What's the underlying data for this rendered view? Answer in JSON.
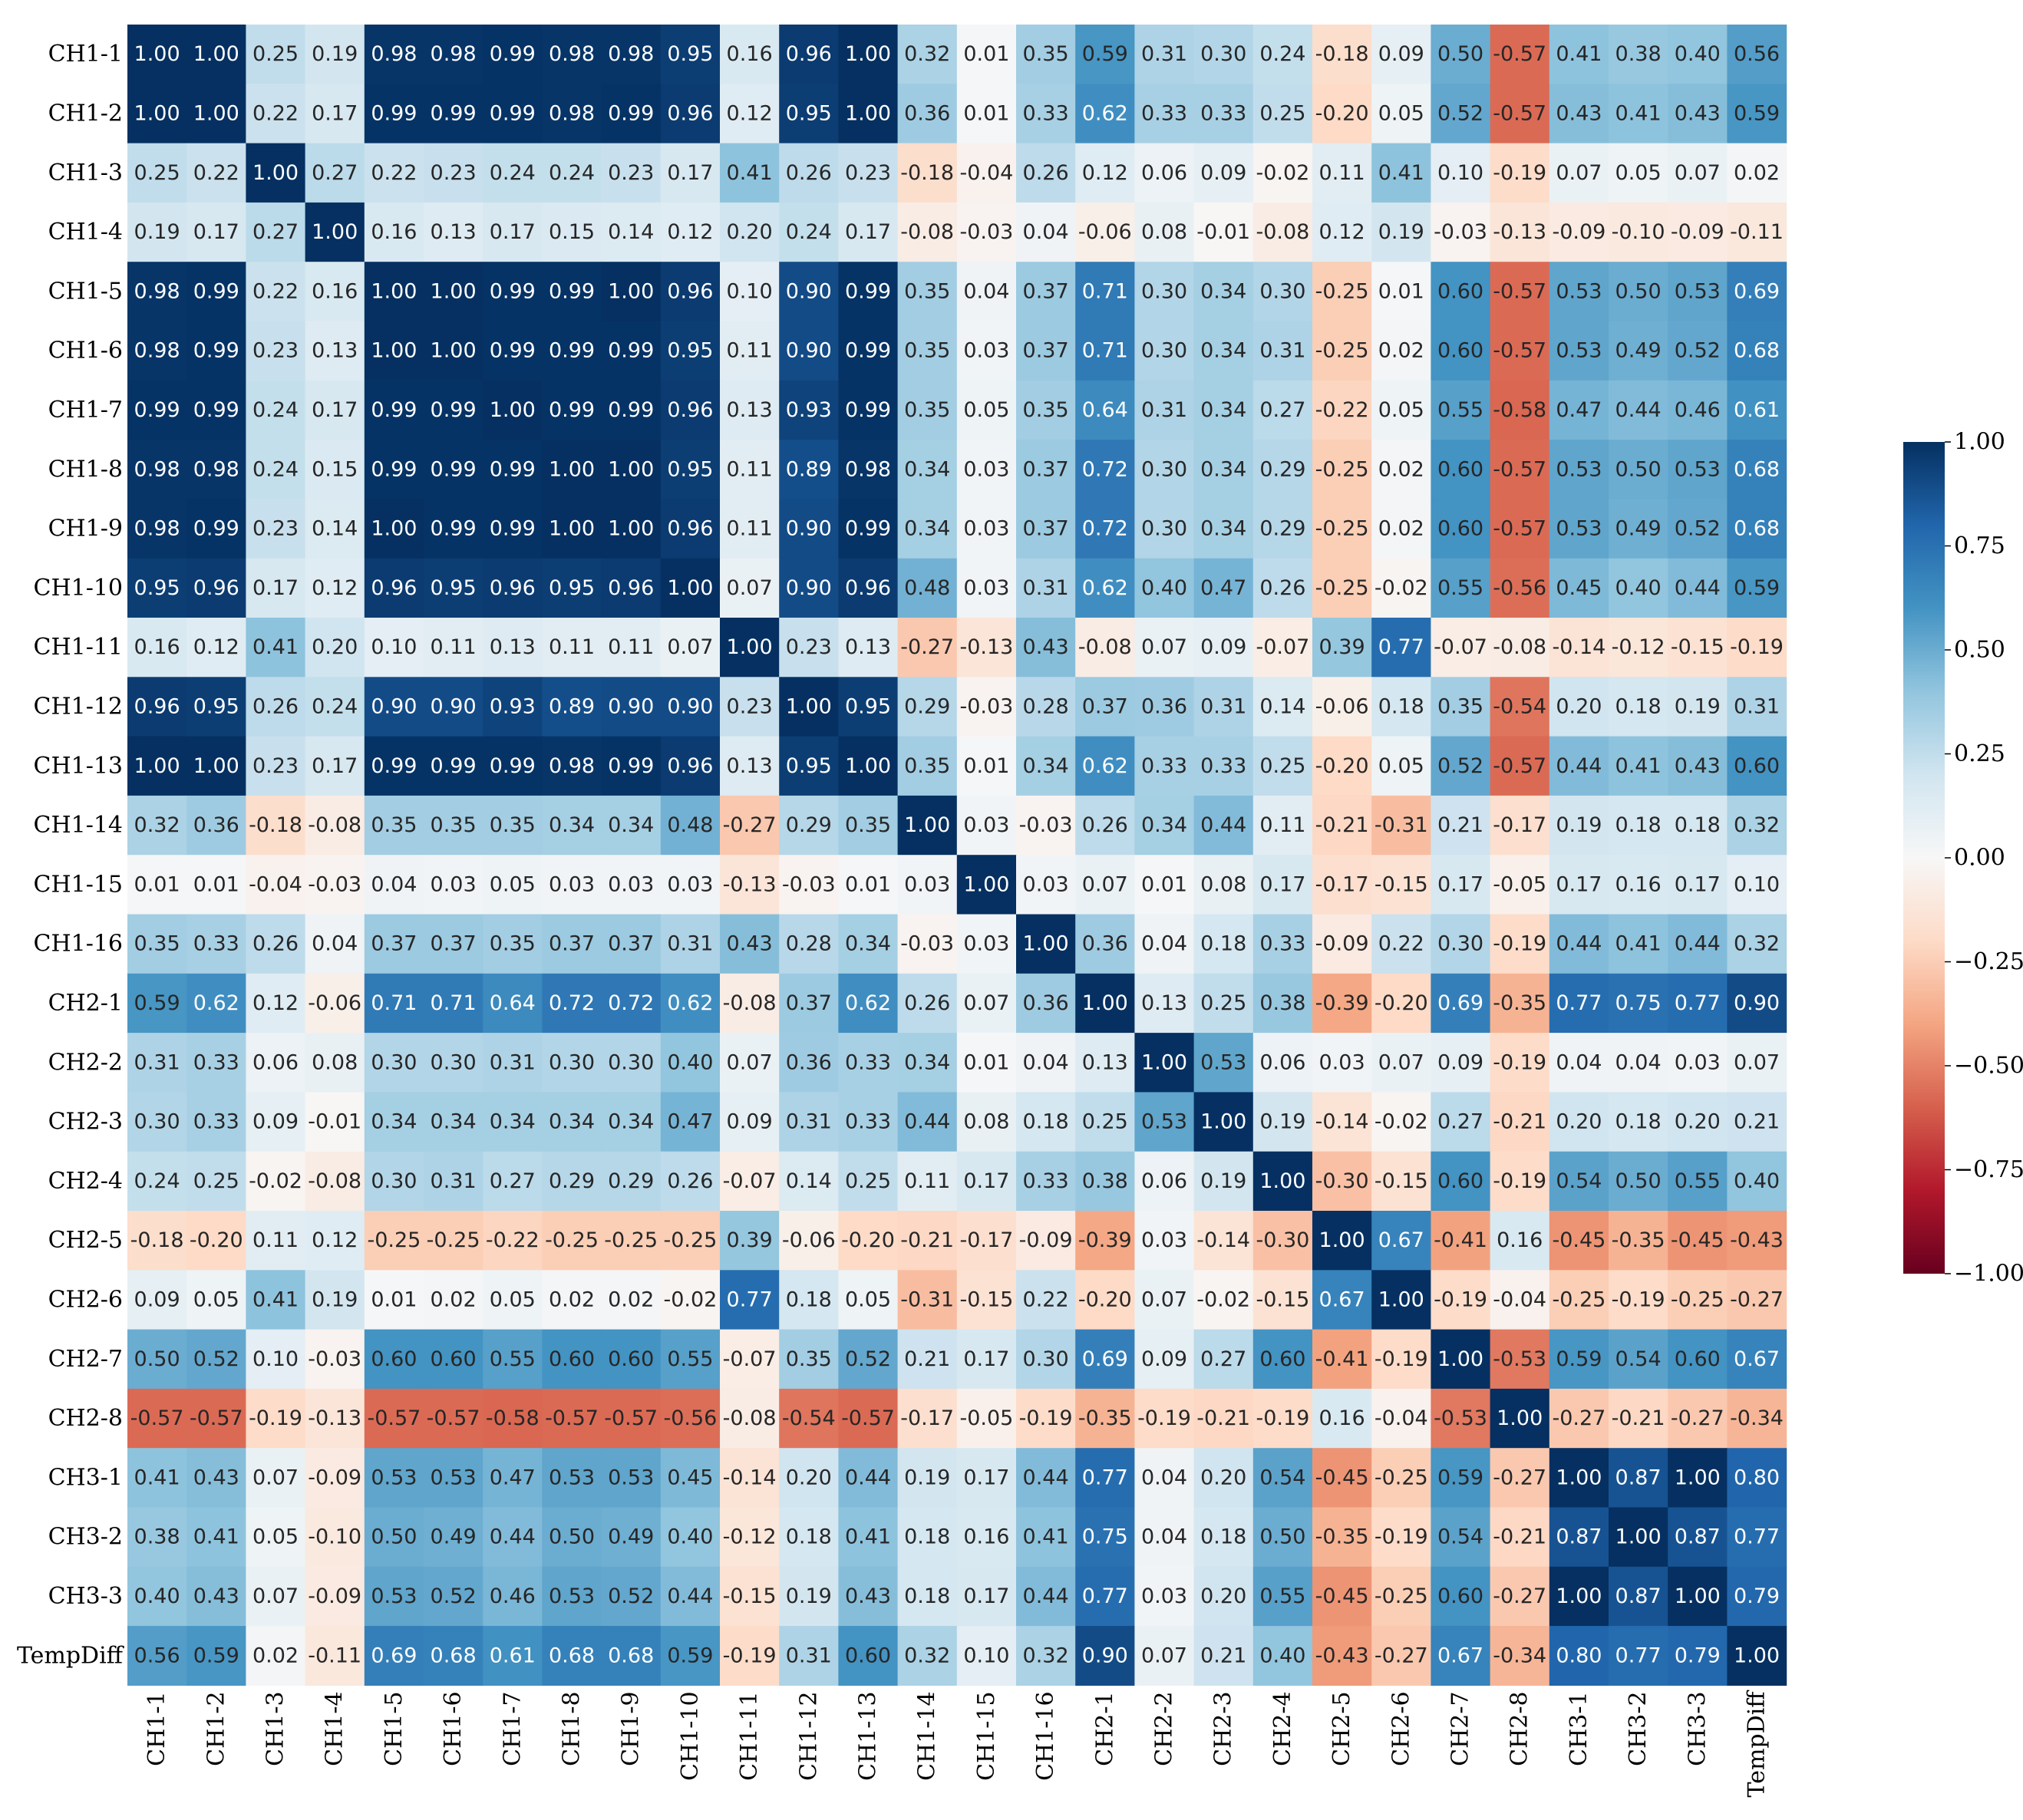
{
  "chart_data": {
    "type": "heatmap",
    "title": "",
    "xlabel": "",
    "ylabel": "",
    "labels": [
      "CH1-1",
      "CH1-2",
      "CH1-3",
      "CH1-4",
      "CH1-5",
      "CH1-6",
      "CH1-7",
      "CH1-8",
      "CH1-9",
      "CH1-10",
      "CH1-11",
      "CH1-12",
      "CH1-13",
      "CH1-14",
      "CH1-15",
      "CH1-16",
      "CH2-1",
      "CH2-2",
      "CH2-3",
      "CH2-4",
      "CH2-5",
      "CH2-6",
      "CH2-7",
      "CH2-8",
      "CH3-1",
      "CH3-2",
      "CH3-3",
      "TempDiff"
    ],
    "values": [
      [
        1.0,
        1.0,
        0.25,
        0.19,
        0.98,
        0.98,
        0.99,
        0.98,
        0.98,
        0.95,
        0.16,
        0.96,
        1.0,
        0.32,
        0.01,
        0.35,
        0.59,
        0.31,
        0.3,
        0.24,
        -0.18,
        0.09,
        0.5,
        -0.57,
        0.41,
        0.38,
        0.4,
        0.56
      ],
      [
        1.0,
        1.0,
        0.22,
        0.17,
        0.99,
        0.99,
        0.99,
        0.98,
        0.99,
        0.96,
        0.12,
        0.95,
        1.0,
        0.36,
        0.01,
        0.33,
        0.62,
        0.33,
        0.33,
        0.25,
        -0.2,
        0.05,
        0.52,
        -0.57,
        0.43,
        0.41,
        0.43,
        0.59
      ],
      [
        0.25,
        0.22,
        1.0,
        0.27,
        0.22,
        0.23,
        0.24,
        0.24,
        0.23,
        0.17,
        0.41,
        0.26,
        0.23,
        -0.18,
        -0.04,
        0.26,
        0.12,
        0.06,
        0.09,
        -0.02,
        0.11,
        0.41,
        0.1,
        -0.19,
        0.07,
        0.05,
        0.07,
        0.02
      ],
      [
        0.19,
        0.17,
        0.27,
        1.0,
        0.16,
        0.13,
        0.17,
        0.15,
        0.14,
        0.12,
        0.2,
        0.24,
        0.17,
        -0.08,
        -0.03,
        0.04,
        -0.06,
        0.08,
        -0.01,
        -0.08,
        0.12,
        0.19,
        -0.03,
        -0.13,
        -0.09,
        -0.1,
        -0.09,
        -0.11
      ],
      [
        0.98,
        0.99,
        0.22,
        0.16,
        1.0,
        1.0,
        0.99,
        0.99,
        1.0,
        0.96,
        0.1,
        0.9,
        0.99,
        0.35,
        0.04,
        0.37,
        0.71,
        0.3,
        0.34,
        0.3,
        -0.25,
        0.01,
        0.6,
        -0.57,
        0.53,
        0.5,
        0.53,
        0.69
      ],
      [
        0.98,
        0.99,
        0.23,
        0.13,
        1.0,
        1.0,
        0.99,
        0.99,
        0.99,
        0.95,
        0.11,
        0.9,
        0.99,
        0.35,
        0.03,
        0.37,
        0.71,
        0.3,
        0.34,
        0.31,
        -0.25,
        0.02,
        0.6,
        -0.57,
        0.53,
        0.49,
        0.52,
        0.68
      ],
      [
        0.99,
        0.99,
        0.24,
        0.17,
        0.99,
        0.99,
        1.0,
        0.99,
        0.99,
        0.96,
        0.13,
        0.93,
        0.99,
        0.35,
        0.05,
        0.35,
        0.64,
        0.31,
        0.34,
        0.27,
        -0.22,
        0.05,
        0.55,
        -0.58,
        0.47,
        0.44,
        0.46,
        0.61
      ],
      [
        0.98,
        0.98,
        0.24,
        0.15,
        0.99,
        0.99,
        0.99,
        1.0,
        1.0,
        0.95,
        0.11,
        0.89,
        0.98,
        0.34,
        0.03,
        0.37,
        0.72,
        0.3,
        0.34,
        0.29,
        -0.25,
        0.02,
        0.6,
        -0.57,
        0.53,
        0.5,
        0.53,
        0.68
      ],
      [
        0.98,
        0.99,
        0.23,
        0.14,
        1.0,
        0.99,
        0.99,
        1.0,
        1.0,
        0.96,
        0.11,
        0.9,
        0.99,
        0.34,
        0.03,
        0.37,
        0.72,
        0.3,
        0.34,
        0.29,
        -0.25,
        0.02,
        0.6,
        -0.57,
        0.53,
        0.49,
        0.52,
        0.68
      ],
      [
        0.95,
        0.96,
        0.17,
        0.12,
        0.96,
        0.95,
        0.96,
        0.95,
        0.96,
        1.0,
        0.07,
        0.9,
        0.96,
        0.48,
        0.03,
        0.31,
        0.62,
        0.4,
        0.47,
        0.26,
        -0.25,
        -0.02,
        0.55,
        -0.56,
        0.45,
        0.4,
        0.44,
        0.59
      ],
      [
        0.16,
        0.12,
        0.41,
        0.2,
        0.1,
        0.11,
        0.13,
        0.11,
        0.11,
        0.07,
        1.0,
        0.23,
        0.13,
        -0.27,
        -0.13,
        0.43,
        -0.08,
        0.07,
        0.09,
        -0.07,
        0.39,
        0.77,
        -0.07,
        -0.08,
        -0.14,
        -0.12,
        -0.15,
        -0.19
      ],
      [
        0.96,
        0.95,
        0.26,
        0.24,
        0.9,
        0.9,
        0.93,
        0.89,
        0.9,
        0.9,
        0.23,
        1.0,
        0.95,
        0.29,
        -0.03,
        0.28,
        0.37,
        0.36,
        0.31,
        0.14,
        -0.06,
        0.18,
        0.35,
        -0.54,
        0.2,
        0.18,
        0.19,
        0.31
      ],
      [
        1.0,
        1.0,
        0.23,
        0.17,
        0.99,
        0.99,
        0.99,
        0.98,
        0.99,
        0.96,
        0.13,
        0.95,
        1.0,
        0.35,
        0.01,
        0.34,
        0.62,
        0.33,
        0.33,
        0.25,
        -0.2,
        0.05,
        0.52,
        -0.57,
        0.44,
        0.41,
        0.43,
        0.6
      ],
      [
        0.32,
        0.36,
        -0.18,
        -0.08,
        0.35,
        0.35,
        0.35,
        0.34,
        0.34,
        0.48,
        -0.27,
        0.29,
        0.35,
        1.0,
        0.03,
        -0.03,
        0.26,
        0.34,
        0.44,
        0.11,
        -0.21,
        -0.31,
        0.21,
        -0.17,
        0.19,
        0.18,
        0.18,
        0.32
      ],
      [
        0.01,
        0.01,
        -0.04,
        -0.03,
        0.04,
        0.03,
        0.05,
        0.03,
        0.03,
        0.03,
        -0.13,
        -0.03,
        0.01,
        0.03,
        1.0,
        0.03,
        0.07,
        0.01,
        0.08,
        0.17,
        -0.17,
        -0.15,
        0.17,
        -0.05,
        0.17,
        0.16,
        0.17,
        0.1
      ],
      [
        0.35,
        0.33,
        0.26,
        0.04,
        0.37,
        0.37,
        0.35,
        0.37,
        0.37,
        0.31,
        0.43,
        0.28,
        0.34,
        -0.03,
        0.03,
        1.0,
        0.36,
        0.04,
        0.18,
        0.33,
        -0.09,
        0.22,
        0.3,
        -0.19,
        0.44,
        0.41,
        0.44,
        0.32
      ],
      [
        0.59,
        0.62,
        0.12,
        -0.06,
        0.71,
        0.71,
        0.64,
        0.72,
        0.72,
        0.62,
        -0.08,
        0.37,
        0.62,
        0.26,
        0.07,
        0.36,
        1.0,
        0.13,
        0.25,
        0.38,
        -0.39,
        -0.2,
        0.69,
        -0.35,
        0.77,
        0.75,
        0.77,
        0.9
      ],
      [
        0.31,
        0.33,
        0.06,
        0.08,
        0.3,
        0.3,
        0.31,
        0.3,
        0.3,
        0.4,
        0.07,
        0.36,
        0.33,
        0.34,
        0.01,
        0.04,
        0.13,
        1.0,
        0.53,
        0.06,
        0.03,
        0.07,
        0.09,
        -0.19,
        0.04,
        0.04,
        0.03,
        0.07
      ],
      [
        0.3,
        0.33,
        0.09,
        -0.01,
        0.34,
        0.34,
        0.34,
        0.34,
        0.34,
        0.47,
        0.09,
        0.31,
        0.33,
        0.44,
        0.08,
        0.18,
        0.25,
        0.53,
        1.0,
        0.19,
        -0.14,
        -0.02,
        0.27,
        -0.21,
        0.2,
        0.18,
        0.2,
        0.21
      ],
      [
        0.24,
        0.25,
        -0.02,
        -0.08,
        0.3,
        0.31,
        0.27,
        0.29,
        0.29,
        0.26,
        -0.07,
        0.14,
        0.25,
        0.11,
        0.17,
        0.33,
        0.38,
        0.06,
        0.19,
        1.0,
        -0.3,
        -0.15,
        0.6,
        -0.19,
        0.54,
        0.5,
        0.55,
        0.4
      ],
      [
        -0.18,
        -0.2,
        0.11,
        0.12,
        -0.25,
        -0.25,
        -0.22,
        -0.25,
        -0.25,
        -0.25,
        0.39,
        -0.06,
        -0.2,
        -0.21,
        -0.17,
        -0.09,
        -0.39,
        0.03,
        -0.14,
        -0.3,
        1.0,
        0.67,
        -0.41,
        0.16,
        -0.45,
        -0.35,
        -0.45,
        -0.43
      ],
      [
        0.09,
        0.05,
        0.41,
        0.19,
        0.01,
        0.02,
        0.05,
        0.02,
        0.02,
        -0.02,
        0.77,
        0.18,
        0.05,
        -0.31,
        -0.15,
        0.22,
        -0.2,
        0.07,
        -0.02,
        -0.15,
        0.67,
        1.0,
        -0.19,
        -0.04,
        -0.25,
        -0.19,
        -0.25,
        -0.27
      ],
      [
        0.5,
        0.52,
        0.1,
        -0.03,
        0.6,
        0.6,
        0.55,
        0.6,
        0.6,
        0.55,
        -0.07,
        0.35,
        0.52,
        0.21,
        0.17,
        0.3,
        0.69,
        0.09,
        0.27,
        0.6,
        -0.41,
        -0.19,
        1.0,
        -0.53,
        0.59,
        0.54,
        0.6,
        0.67
      ],
      [
        -0.57,
        -0.57,
        -0.19,
        -0.13,
        -0.57,
        -0.57,
        -0.58,
        -0.57,
        -0.57,
        -0.56,
        -0.08,
        -0.54,
        -0.57,
        -0.17,
        -0.05,
        -0.19,
        -0.35,
        -0.19,
        -0.21,
        -0.19,
        0.16,
        -0.04,
        -0.53,
        1.0,
        -0.27,
        -0.21,
        -0.27,
        -0.34
      ],
      [
        0.41,
        0.43,
        0.07,
        -0.09,
        0.53,
        0.53,
        0.47,
        0.53,
        0.53,
        0.45,
        -0.14,
        0.2,
        0.44,
        0.19,
        0.17,
        0.44,
        0.77,
        0.04,
        0.2,
        0.54,
        -0.45,
        -0.25,
        0.59,
        -0.27,
        1.0,
        0.87,
        1.0,
        0.8
      ],
      [
        0.38,
        0.41,
        0.05,
        -0.1,
        0.5,
        0.49,
        0.44,
        0.5,
        0.49,
        0.4,
        -0.12,
        0.18,
        0.41,
        0.18,
        0.16,
        0.41,
        0.75,
        0.04,
        0.18,
        0.5,
        -0.35,
        -0.19,
        0.54,
        -0.21,
        0.87,
        1.0,
        0.87,
        0.77
      ],
      [
        0.4,
        0.43,
        0.07,
        -0.09,
        0.53,
        0.52,
        0.46,
        0.53,
        0.52,
        0.44,
        -0.15,
        0.19,
        0.43,
        0.18,
        0.17,
        0.44,
        0.77,
        0.03,
        0.2,
        0.55,
        -0.45,
        -0.25,
        0.6,
        -0.27,
        1.0,
        0.87,
        1.0,
        0.79
      ],
      [
        0.56,
        0.59,
        0.02,
        -0.11,
        0.69,
        0.68,
        0.61,
        0.68,
        0.68,
        0.59,
        -0.19,
        0.31,
        0.6,
        0.32,
        0.1,
        0.32,
        0.9,
        0.07,
        0.21,
        0.4,
        -0.43,
        -0.27,
        0.67,
        -0.34,
        0.8,
        0.77,
        0.79,
        1.0
      ]
    ],
    "vmin": -1.0,
    "vmax": 1.0,
    "value_format": "2 decimals",
    "colormap": "RdBu",
    "colorbar": {
      "ticks": [
        1.0,
        0.75,
        0.5,
        0.25,
        0.0,
        -0.25,
        -0.5,
        -0.75,
        -1.0
      ],
      "tick_labels": [
        "1.00",
        "0.75",
        "0.50",
        "0.25",
        "0.00",
        "−0.25",
        "−0.50",
        "−0.75",
        "−1.00"
      ],
      "placement": "right"
    },
    "colors": {
      "stops": [
        "#67001f",
        "#b2182b",
        "#d6604d",
        "#f4a582",
        "#fddbc7",
        "#f7f7f7",
        "#d1e5f0",
        "#92c5de",
        "#4393c3",
        "#2166ac",
        "#053061"
      ],
      "text_dark": "#262626",
      "text_light": "#ffffff"
    }
  }
}
